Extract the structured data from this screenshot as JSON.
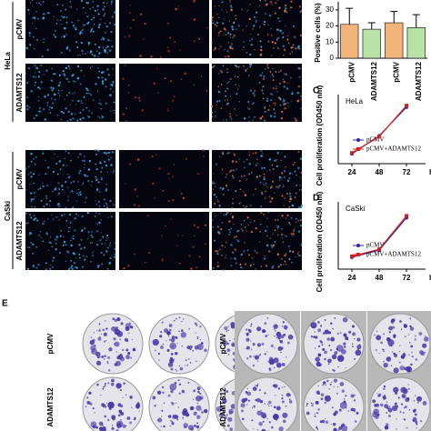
{
  "panel_a": {
    "groups": [
      "HeLa",
      "CaSki"
    ],
    "rows": [
      "pCMV",
      "ADAMTS12",
      "pCMV",
      "ADAMTS12"
    ]
  },
  "chart_data": [
    {
      "type": "bar",
      "y_label": "Positive cells (%)",
      "categories": [
        "pCMV",
        "ADAMTS12",
        "pCMV",
        "ADAMTS12"
      ],
      "values": [
        21,
        18,
        22,
        19
      ],
      "errors": [
        10,
        4,
        7,
        8
      ],
      "colors": [
        "#f2b47a",
        "#b9e2a6",
        "#f2b47a",
        "#b9e2a6"
      ],
      "ylim": [
        0,
        35
      ],
      "yticks": [
        0,
        10,
        20,
        30
      ]
    },
    {
      "type": "line",
      "panel": "C",
      "title": "HeLa",
      "y_label": "Cell proliferation (OD450 nm)",
      "x_unit": "h",
      "x": [
        24,
        48,
        72
      ],
      "xlim": [
        12,
        84
      ],
      "xticks": [
        24,
        48,
        72
      ],
      "ylim": [
        1.8,
        3.4
      ],
      "series": [
        {
          "name": "pCMV",
          "color": "#2a2a9c",
          "marker": "circle",
          "values": [
            2.05,
            2.5,
            3.22
          ]
        },
        {
          "name": "pCMV+ADAMTS12",
          "color": "#d42222",
          "marker": "square",
          "values": [
            2.07,
            2.48,
            3.26
          ]
        }
      ]
    },
    {
      "type": "line",
      "panel": "D",
      "title": "CaSki",
      "y_label": "Cell proliferation (OD450 nm)",
      "x_unit": "h",
      "x": [
        24,
        48,
        72
      ],
      "xlim": [
        12,
        84
      ],
      "xticks": [
        24,
        48,
        72
      ],
      "ylim": [
        0.4,
        1.7
      ],
      "series": [
        {
          "name": "pCMV",
          "color": "#2a2a9c",
          "marker": "circle",
          "values": [
            0.65,
            0.8,
            1.48
          ]
        },
        {
          "name": "pCMV+ADAMTS12",
          "color": "#d42222",
          "marker": "square",
          "values": [
            0.67,
            0.82,
            1.52
          ]
        }
      ]
    }
  ],
  "panel_e": {
    "letter": "E",
    "rows": [
      "pCMV",
      "ADAMTS12",
      "pCMV",
      "ADAMTS12"
    ]
  }
}
